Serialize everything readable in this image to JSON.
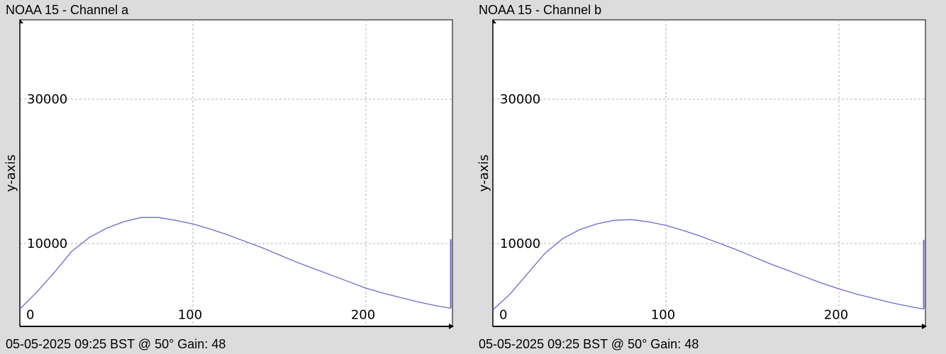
{
  "charts": [
    {
      "title": "NOAA 15 - Channel a",
      "footer": "05-05-2025 09:25 BST @ 50° Gain: 48",
      "chart_data": {
        "type": "line",
        "title": "NOAA 15 - Channel a",
        "xlabel": "",
        "ylabel": "y-axis",
        "xlim": [
          0,
          250
        ],
        "ylim": [
          -1500,
          41000
        ],
        "x_ticks": [
          0,
          100,
          200
        ],
        "y_ticks": [
          10000,
          30000
        ],
        "grid": true,
        "series": [
          {
            "color": "#6a6ad0",
            "x": [
              0,
              10,
              20,
              30,
              40,
              50,
              60,
              70,
              80,
              90,
              100,
              110,
              120,
              130,
              140,
              150,
              160,
              170,
              180,
              190,
              200,
              210,
              220,
              230,
              240,
              249
            ],
            "y": [
              900,
              3300,
              6000,
              8900,
              10800,
              12100,
              13000,
              13600,
              13600,
              13200,
              12700,
              12000,
              11200,
              10300,
              9400,
              8400,
              7400,
              6500,
              5600,
              4700,
              3800,
              3100,
              2500,
              1900,
              1400,
              1000
            ],
            "end_spike": 10600
          }
        ]
      }
    },
    {
      "title": "NOAA 15 - Channel b",
      "footer": "05-05-2025 09:25 BST @ 50° Gain: 48",
      "chart_data": {
        "type": "line",
        "title": "NOAA 15 - Channel b",
        "xlabel": "",
        "ylabel": "y-axis",
        "xlim": [
          0,
          250
        ],
        "ylim": [
          -1500,
          41000
        ],
        "x_ticks": [
          0,
          100,
          200
        ],
        "y_ticks": [
          10000,
          30000
        ],
        "grid": true,
        "series": [
          {
            "color": "#6a6ad0",
            "x": [
              0,
              10,
              20,
              30,
              40,
              50,
              60,
              70,
              80,
              90,
              100,
              110,
              120,
              130,
              140,
              150,
              160,
              170,
              180,
              190,
              200,
              210,
              220,
              230,
              240,
              249
            ],
            "y": [
              800,
              3000,
              5800,
              8600,
              10600,
              11900,
              12700,
              13200,
              13300,
              13000,
              12500,
              11800,
              11000,
              10100,
              9200,
              8200,
              7200,
              6300,
              5400,
              4500,
              3700,
              3000,
              2400,
              1800,
              1300,
              900
            ],
            "end_spike": 10500
          }
        ]
      }
    }
  ]
}
